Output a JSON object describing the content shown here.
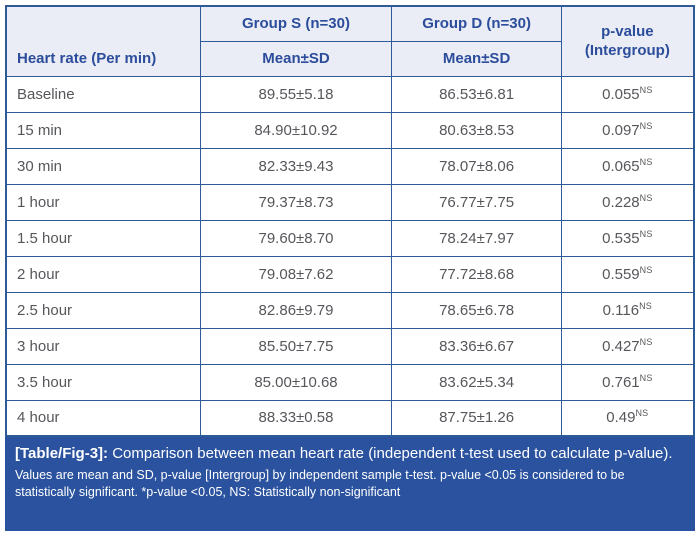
{
  "table": {
    "header": {
      "row_header": "Heart rate (Per min)",
      "group_s": "Group S (n=30)",
      "group_d": "Group D (n=30)",
      "mean_sd_s": "Mean±SD",
      "mean_sd_d": "Mean±SD",
      "p_line1": "p-value",
      "p_line2": "(Intergroup)"
    },
    "rows": [
      {
        "label": "Baseline",
        "group_s": "89.55±5.18",
        "group_d": "86.53±6.81",
        "p": "0.055",
        "p_sup": "NS"
      },
      {
        "label": "15 min",
        "group_s": "84.90±10.92",
        "group_d": "80.63±8.53",
        "p": "0.097",
        "p_sup": "NS"
      },
      {
        "label": "30 min",
        "group_s": "82.33±9.43",
        "group_d": "78.07±8.06",
        "p": "0.065",
        "p_sup": "NS"
      },
      {
        "label": "1 hour",
        "group_s": "79.37±8.73",
        "group_d": "76.77±7.75",
        "p": "0.228",
        "p_sup": "NS"
      },
      {
        "label": "1.5 hour",
        "group_s": "79.60±8.70",
        "group_d": "78.24±7.97",
        "p": "0.535",
        "p_sup": "NS"
      },
      {
        "label": "2 hour",
        "group_s": "79.08±7.62",
        "group_d": "77.72±8.68",
        "p": "0.559",
        "p_sup": "NS"
      },
      {
        "label": "2.5 hour",
        "group_s": "82.86±9.79",
        "group_d": "78.65±6.78",
        "p": "0.116",
        "p_sup": "NS"
      },
      {
        "label": "3 hour",
        "group_s": "85.50±7.75",
        "group_d": "83.36±6.67",
        "p": "0.427",
        "p_sup": "NS"
      },
      {
        "label": "3.5 hour",
        "group_s": "85.00±10.68",
        "group_d": "83.62±5.34",
        "p": "0.761",
        "p_sup": "NS"
      },
      {
        "label": "4 hour",
        "group_s": "88.33±0.58",
        "group_d": "87.75±1.26",
        "p": "0.49",
        "p_sup": "NS"
      }
    ]
  },
  "footer": {
    "caption_label": "[Table/Fig-3]:",
    "caption_text": " Comparison between mean heart rate (independent t-test used to calculate p-value).",
    "footnote": "Values are mean and SD, p-value [Intergroup] by independent sample t-test. p-value <0.05 is considered to be statistically significant. *p-value <0.05, NS: Statistically non-significant"
  },
  "colors": {
    "border": "#2e5a97",
    "header_bg": "#ebedf6",
    "header_text": "#2b4d9b",
    "data_text": "#56575b",
    "footer_bg": "#2a529e",
    "footer_text": "#ffffff",
    "page_bg": "#ffffff"
  }
}
